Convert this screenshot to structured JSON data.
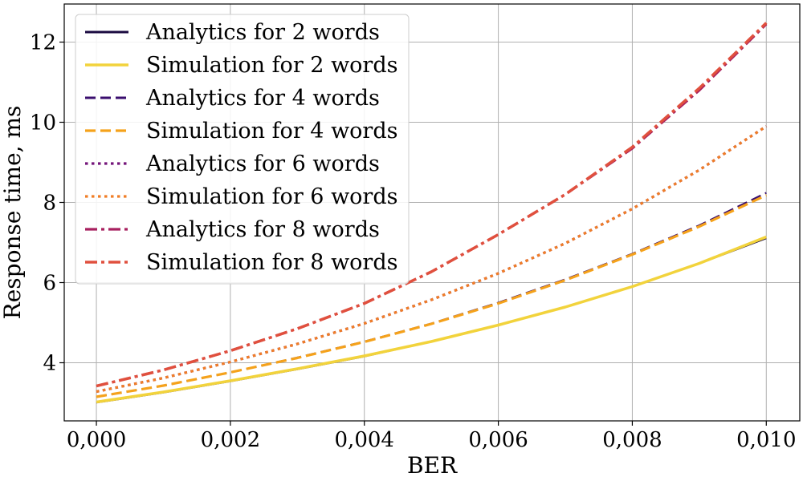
{
  "chart_data": {
    "type": "line",
    "title": "",
    "xlabel": "BER",
    "ylabel": "Response time, ms",
    "xlim": [
      -0.00048,
      0.0105
    ],
    "ylim": [
      2.55,
      12.95
    ],
    "xticks": [
      0,
      0.002,
      0.004,
      0.006,
      0.008,
      0.01
    ],
    "xtick_labels": [
      "0,000",
      "0,002",
      "0,004",
      "0,006",
      "0,008",
      "0,010"
    ],
    "yticks": [
      4,
      6,
      8,
      10,
      12
    ],
    "ytick_labels": [
      "4",
      "6",
      "8",
      "10",
      "12"
    ],
    "grid": true,
    "legend_position": "top-left",
    "x": [
      0,
      0.001,
      0.002,
      0.003,
      0.004,
      0.005,
      0.006,
      0.007,
      0.008,
      0.009,
      0.01
    ],
    "series": [
      {
        "name": "Analytics for 2 words",
        "color": "#1a0a40",
        "dash": "solid",
        "width": 1.5,
        "values": [
          3.0,
          3.25,
          3.53,
          3.83,
          4.15,
          4.52,
          4.93,
          5.4,
          5.9,
          6.47,
          7.1
        ]
      },
      {
        "name": "Simulation for 2 words",
        "color": "#f2d33c",
        "dash": "solid",
        "width": 3.5,
        "values": [
          3.02,
          3.27,
          3.55,
          3.85,
          4.17,
          4.53,
          4.94,
          5.39,
          5.9,
          6.48,
          7.14
        ]
      },
      {
        "name": "Analytics for 4 words",
        "color": "#3a0e6e",
        "dash": "dashed",
        "width": 2.2,
        "values": [
          3.15,
          3.43,
          3.76,
          4.13,
          4.53,
          4.98,
          5.5,
          6.08,
          6.72,
          7.43,
          8.24
        ]
      },
      {
        "name": "Simulation for 4 words",
        "color": "#f5a21b",
        "dash": "dashed",
        "width": 3.2,
        "values": [
          3.15,
          3.43,
          3.76,
          4.12,
          4.52,
          4.97,
          5.48,
          6.06,
          6.7,
          7.4,
          8.18
        ]
      },
      {
        "name": "Analytics for 6 words",
        "color": "#74157a",
        "dash": "dotted",
        "width": 3.2,
        "values": [
          3.28,
          3.62,
          4.02,
          4.47,
          4.98,
          5.57,
          6.23,
          6.98,
          7.84,
          8.81,
          9.9
        ]
      },
      {
        "name": "Simulation for 6 words",
        "color": "#f07e26",
        "dash": "dotted",
        "width": 3.2,
        "values": [
          3.28,
          3.62,
          4.02,
          4.47,
          4.98,
          5.57,
          6.23,
          6.98,
          7.84,
          8.81,
          9.9
        ]
      },
      {
        "name": "Analytics for 8 words",
        "color": "#a8205f",
        "dash": "dashdot",
        "width": 3.2,
        "values": [
          3.42,
          3.82,
          4.3,
          4.85,
          5.48,
          6.27,
          7.2,
          8.2,
          9.35,
          10.8,
          12.45
        ]
      },
      {
        "name": "Simulation for 8 words",
        "color": "#e0503e",
        "dash": "dashdot",
        "width": 3.5,
        "values": [
          3.42,
          3.82,
          4.3,
          4.85,
          5.48,
          6.27,
          7.2,
          8.2,
          9.38,
          10.85,
          12.48
        ]
      }
    ]
  }
}
